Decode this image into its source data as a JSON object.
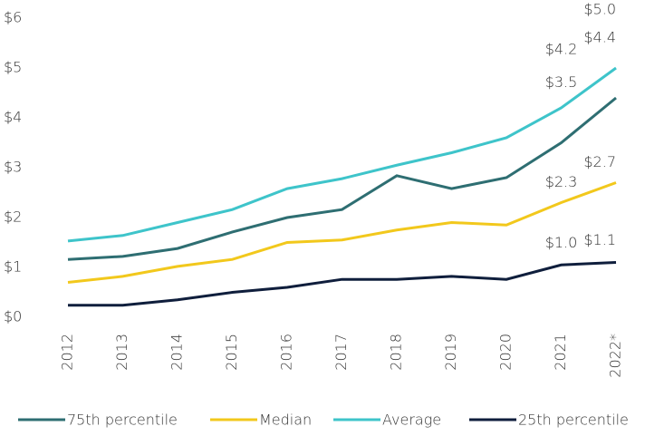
{
  "chart_data": {
    "type": "line",
    "categories": [
      "2012",
      "2013",
      "2014",
      "2015",
      "2016",
      "2017",
      "2018",
      "2019",
      "2020",
      "2021",
      "2022*"
    ],
    "series": [
      {
        "name": "75th percentile",
        "color": "#2e6e72",
        "values": [
          1.16,
          1.22,
          1.38,
          1.71,
          2.0,
          2.16,
          2.84,
          2.58,
          2.8,
          3.5,
          4.4
        ],
        "value_labels": [
          null,
          null,
          null,
          null,
          null,
          null,
          null,
          null,
          null,
          "$3.5",
          "$4.4"
        ]
      },
      {
        "name": "Median",
        "color": "#f2c81c",
        "values": [
          0.7,
          0.82,
          1.02,
          1.16,
          1.5,
          1.55,
          1.75,
          1.9,
          1.85,
          2.3,
          2.7
        ],
        "value_labels": [
          null,
          null,
          null,
          null,
          null,
          null,
          null,
          null,
          null,
          "$2.3",
          "$2.7"
        ]
      },
      {
        "name": "Average",
        "color": "#3ec4ca",
        "values": [
          1.53,
          1.64,
          1.9,
          2.16,
          2.58,
          2.78,
          3.05,
          3.3,
          3.6,
          4.2,
          5.0
        ],
        "value_labels": [
          null,
          null,
          null,
          null,
          null,
          null,
          null,
          null,
          null,
          "$4.2",
          "$5.0"
        ]
      },
      {
        "name": "25th percentile",
        "color": "#0f1e3c",
        "values": [
          0.24,
          0.24,
          0.35,
          0.5,
          0.6,
          0.76,
          0.76,
          0.82,
          0.76,
          1.05,
          1.1
        ],
        "value_labels": [
          null,
          null,
          null,
          null,
          null,
          null,
          null,
          null,
          null,
          "$1.0",
          "$1.1"
        ]
      }
    ],
    "ylim": [
      0,
      6
    ],
    "yticks": [
      {
        "value": 0,
        "label": "$0"
      },
      {
        "value": 1,
        "label": "$1"
      },
      {
        "value": 2,
        "label": "$2"
      },
      {
        "value": 3,
        "label": "$3"
      },
      {
        "value": 4,
        "label": "$4"
      },
      {
        "value": 5,
        "label": "$5"
      },
      {
        "value": 6,
        "label": "$6"
      }
    ],
    "legend": "bottom"
  }
}
